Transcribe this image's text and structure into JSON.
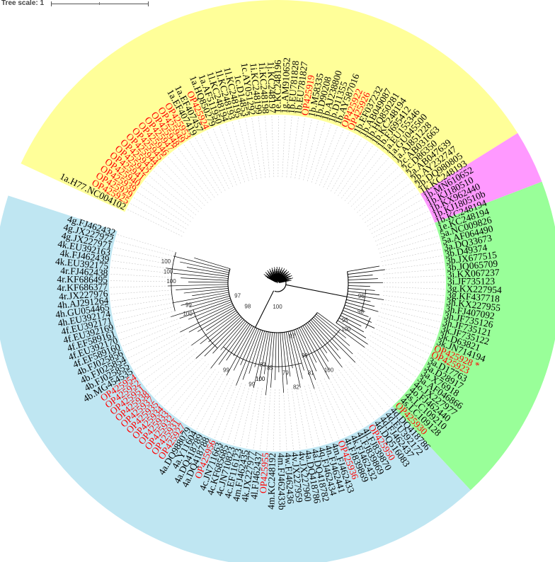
{
  "tree_scale": {
    "label": "Tree scale: 1"
  },
  "colors": {
    "clade_1": "#ffff99",
    "clade_2": "#ff99ff",
    "clade_3": "#99ff99",
    "clade_4": "#bfe6f2",
    "black_label": "#000000",
    "red_label": "#ff0000",
    "branch": "#000000",
    "guide_line": "#aaaaaa"
  },
  "sectors": [
    {
      "clade": "1",
      "color": "#ffff99",
      "from": 205,
      "to": 328
    },
    {
      "clade": "2",
      "color": "#ff99ff",
      "from": 328,
      "to": 339
    },
    {
      "clade": "3",
      "color": "#99ff99",
      "from": 339,
      "to": 407
    },
    {
      "clade": "4",
      "color": "#bfe6f2",
      "from": 407,
      "to": 558
    }
  ],
  "leaves": [
    {
      "label": "1a.H77.NC004102",
      "color": "black"
    },
    {
      "label": "OP425925",
      "color": "red"
    },
    {
      "label": "OP425929",
      "color": "red"
    },
    {
      "label": "OP425939",
      "color": "red"
    },
    {
      "label": "OP425940",
      "color": "red"
    },
    {
      "label": "OP425941",
      "color": "red"
    },
    {
      "label": "OP425942",
      "color": "red"
    },
    {
      "label": "OP425943",
      "color": "red"
    },
    {
      "label": "OP425944",
      "color": "red"
    },
    {
      "label": "OP425945",
      "color": "red"
    },
    {
      "label": "OP425946",
      "color": "red"
    },
    {
      "label": "OP425947",
      "color": "red"
    },
    {
      "label": "OP425948",
      "color": "red"
    },
    {
      "label": "OP425949",
      "color": "red"
    },
    {
      "label": "OP425953",
      "color": "red"
    },
    {
      "label": "1a.EF407419",
      "color": "black"
    },
    {
      "label": "1a.EF407457",
      "color": "black"
    },
    {
      "label": "OP425924",
      "color": "red"
    },
    {
      "label": "1a.HQ850279",
      "color": "black"
    },
    {
      "label": "1a.AF511950",
      "color": "black"
    },
    {
      "label": "1l.KC248194",
      "color": "black"
    },
    {
      "label": "1l.KC248193",
      "color": "black"
    },
    {
      "label": "1l.KC248195",
      "color": "black"
    },
    {
      "label": "1c.D14853",
      "color": "black"
    },
    {
      "label": "1c.AY051292",
      "color": "black"
    },
    {
      "label": "1i.KC248199",
      "color": "black"
    },
    {
      "label": "1i.KC248198",
      "color": "black"
    },
    {
      "label": "1j.KC248197",
      "color": "black"
    },
    {
      "label": "1e.KC248196",
      "color": "black"
    },
    {
      "label": "1g.AM910652",
      "color": "black"
    },
    {
      "label": "1b.EU781828",
      "color": "black"
    },
    {
      "label": "1b.EU781827",
      "color": "black"
    },
    {
      "label": "OP425919",
      "color": "red"
    },
    {
      "label": "1b.M58335",
      "color": "black"
    },
    {
      "label": "1b.D90208",
      "color": "black"
    },
    {
      "label": "1b.AJ238800",
      "color": "black"
    },
    {
      "label": "1b.D11355",
      "color": "black"
    },
    {
      "label": "1b.AY587016",
      "color": "black"
    },
    {
      "label": "OP425922",
      "color": "red"
    },
    {
      "label": "OP425926",
      "color": "red"
    },
    {
      "label": "1b.EF037232",
      "color": "black"
    },
    {
      "label": "1b.AB049087",
      "color": "black"
    },
    {
      "label": "1b.HQ850281",
      "color": "black"
    },
    {
      "label": "1b.KC248194",
      "color": "black"
    },
    {
      "label": "1b.FJ695412",
      "color": "black"
    },
    {
      "label": "1a.EU155346",
      "color": "black"
    },
    {
      "label": "1a.GU045500",
      "color": "black"
    },
    {
      "label": "1a.AJ851228",
      "color": "black"
    },
    {
      "label": "2c.AB031663",
      "color": "black"
    },
    {
      "label": "2c.D86350",
      "color": "black"
    },
    {
      "label": "2a.AB047639",
      "color": "black"
    },
    {
      "label": "2b.AY232747",
      "color": "black"
    },
    {
      "label": "2b.DQ980805",
      "color": "black"
    },
    {
      "label": "1k.KC248193",
      "color": "black"
    },
    {
      "label": "1b.MN610652",
      "color": "black"
    },
    {
      "label": "1b.KJ180510",
      "color": "black"
    },
    {
      "label": "1b.KX962440",
      "color": "black"
    },
    {
      "label": "1b.KJ180510b",
      "color": "black"
    },
    {
      "label": "1b.KC248194",
      "color": "black"
    },
    {
      "label": "1e.KC248194",
      "color": "black"
    },
    {
      "label": "5a.NC009826",
      "color": "black"
    },
    {
      "label": "5a.AF064490",
      "color": "black"
    },
    {
      "label": "3a.DQ33673",
      "color": "black"
    },
    {
      "label": "3b.D49374",
      "color": "black"
    },
    {
      "label": "3b.JX677515",
      "color": "black"
    },
    {
      "label": "3b.JQ065709",
      "color": "black"
    },
    {
      "label": "3i.KX067237",
      "color": "black"
    },
    {
      "label": "3i.JF735123",
      "color": "black"
    },
    {
      "label": "3g.KX227954",
      "color": "black"
    },
    {
      "label": "3g.KF437718",
      "color": "black"
    },
    {
      "label": "3h.KX227955",
      "color": "black"
    },
    {
      "label": "3h.FJ407092",
      "color": "black"
    },
    {
      "label": "3h.JF735126",
      "color": "black"
    },
    {
      "label": "3h.JF735121",
      "color": "black"
    },
    {
      "label": "3k.JF735122",
      "color": "black"
    },
    {
      "label": "3k.D63821",
      "color": "black"
    },
    {
      "label": "3k.JN714194",
      "color": "black"
    },
    {
      "label": "OP425928 *",
      "color": "red"
    },
    {
      "label": "OP425923",
      "color": "red"
    },
    {
      "label": "3a.D17763",
      "color": "black"
    },
    {
      "label": "3a.D28917",
      "color": "black"
    },
    {
      "label": "3a.X76918",
      "color": "black"
    },
    {
      "label": "3a.AF046866",
      "color": "black"
    },
    {
      "label": "4o.JX227977",
      "color": "black"
    },
    {
      "label": "4o.FJ462440",
      "color": "black"
    },
    {
      "label": "4s.LC109210",
      "color": "black"
    },
    {
      "label": "4s.LC109128",
      "color": "black"
    },
    {
      "label": "OP425930",
      "color": "red"
    },
    {
      "label": "4d.DQ418786",
      "color": "black"
    },
    {
      "label": "4d.EU392172",
      "color": "black"
    },
    {
      "label": "4d.FJ462437",
      "color": "black"
    },
    {
      "label": "4d.DQ516083",
      "color": "black"
    },
    {
      "label": "OP425950",
      "color": "red"
    },
    {
      "label": "4l.FJ839870",
      "color": "black"
    },
    {
      "label": "4l.FJ839869",
      "color": "black"
    },
    {
      "label": "4k.FJ462432",
      "color": "black"
    },
    {
      "label": "4t.FJ839869",
      "color": "black"
    },
    {
      "label": "OP425936",
      "color": "red"
    },
    {
      "label": "4m.FJ462433",
      "color": "black"
    },
    {
      "label": "4n.FJ462441",
      "color": "black"
    },
    {
      "label": "4q.FJ462434",
      "color": "black"
    },
    {
      "label": "4a.DQ418782",
      "color": "black"
    },
    {
      "label": "4a.DQ418786",
      "color": "black"
    },
    {
      "label": "4v.JX227960",
      "color": "black"
    },
    {
      "label": "4v.JX227959",
      "color": "black"
    },
    {
      "label": "4w.FJ462436",
      "color": "black"
    },
    {
      "label": "4m.FJ462433b",
      "color": "black"
    },
    {
      "label": "4m.KC248192",
      "color": "black"
    },
    {
      "label": "OP425955",
      "color": "red"
    },
    {
      "label": "4l.FJ462437",
      "color": "black"
    },
    {
      "label": "4k.JX227977",
      "color": "black"
    },
    {
      "label": "4m.FJ462435",
      "color": "black"
    },
    {
      "label": "4c.EF116123",
      "color": "black"
    },
    {
      "label": "4c.JN710823",
      "color": "black"
    },
    {
      "label": "4c.KF685685",
      "color": "black"
    },
    {
      "label": "4c.JN711663",
      "color": "black"
    },
    {
      "label": "OP425956",
      "color": "red"
    },
    {
      "label": "4a.DQ418788",
      "color": "black"
    },
    {
      "label": "4a.DQ418789",
      "color": "black"
    },
    {
      "label": "4a.Y11604",
      "color": "black"
    },
    {
      "label": "4a.DQ988079",
      "color": "black"
    },
    {
      "label": "OP425927",
      "color": "red"
    },
    {
      "label": "OP425931",
      "color": "red"
    },
    {
      "label": "OP425932",
      "color": "red"
    },
    {
      "label": "OP425933",
      "color": "red"
    },
    {
      "label": "OP425934",
      "color": "red"
    },
    {
      "label": "OP425935",
      "color": "red"
    },
    {
      "label": "OP425937",
      "color": "red"
    },
    {
      "label": "OP425938",
      "color": "red"
    },
    {
      "label": "OP425951",
      "color": "red"
    },
    {
      "label": "OP425952",
      "color": "red"
    },
    {
      "label": "OP425954",
      "color": "red"
    },
    {
      "label": "4b.MG454535",
      "color": "black"
    },
    {
      "label": "4b.FJ025855",
      "color": "black"
    },
    {
      "label": "4b.FJ025854",
      "color": "black"
    },
    {
      "label": "4b.FJ025856",
      "color": "black"
    },
    {
      "label": "4f.EF589160",
      "color": "black"
    },
    {
      "label": "4f.EU392170",
      "color": "black"
    },
    {
      "label": "4f.EF589161",
      "color": "black"
    },
    {
      "label": "4f.EU392169",
      "color": "black"
    },
    {
      "label": "4f.EU392171",
      "color": "black"
    },
    {
      "label": "4h.EU392174",
      "color": "black"
    },
    {
      "label": "4h.GU054465",
      "color": "black"
    },
    {
      "label": "4h.AJ291264",
      "color": "black"
    },
    {
      "label": "4r.JX227976",
      "color": "black"
    },
    {
      "label": "4r.KF686377",
      "color": "black"
    },
    {
      "label": "4r.KF686495",
      "color": "black"
    },
    {
      "label": "4r.FJ462438",
      "color": "black"
    },
    {
      "label": "4k.EU392175",
      "color": "black"
    },
    {
      "label": "4k.FJ462439",
      "color": "black"
    },
    {
      "label": "4k.EU392163",
      "color": "black"
    },
    {
      "label": "4g.JX227971",
      "color": "black"
    },
    {
      "label": "4g.JX227972",
      "color": "black"
    },
    {
      "label": "4g.FJ462432",
      "color": "black"
    }
  ],
  "bootstrap": [
    {
      "value": "100"
    },
    {
      "value": "97"
    },
    {
      "value": "98"
    },
    {
      "value": "97"
    },
    {
      "value": "83"
    },
    {
      "value": "85"
    },
    {
      "value": "79"
    },
    {
      "value": "100"
    },
    {
      "value": "81"
    },
    {
      "value": "99"
    },
    {
      "value": "82"
    },
    {
      "value": "100"
    },
    {
      "value": "98"
    },
    {
      "value": "96"
    },
    {
      "value": "100"
    },
    {
      "value": "95"
    },
    {
      "value": "99"
    },
    {
      "value": "100"
    },
    {
      "value": "99"
    },
    {
      "value": "100"
    },
    {
      "value": "99"
    },
    {
      "value": "100"
    },
    {
      "value": "100"
    },
    {
      "value": "100"
    }
  ]
}
